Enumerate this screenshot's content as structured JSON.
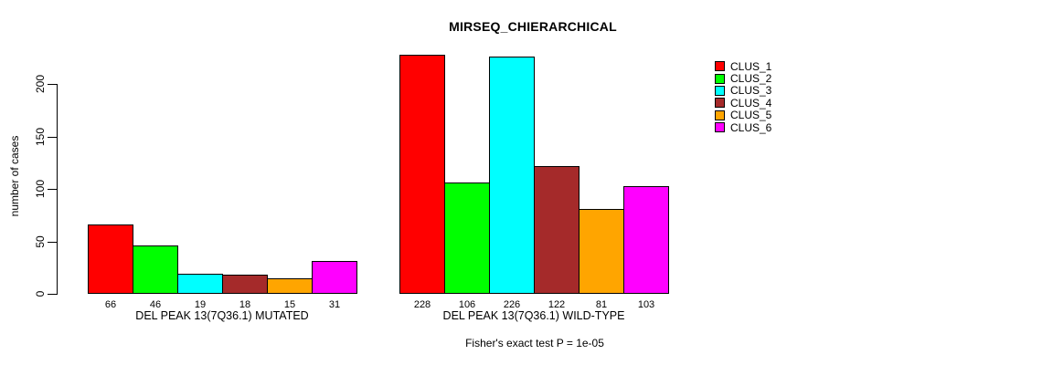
{
  "window": {
    "background": "#ffffff",
    "text_color": "#000000"
  },
  "chart_data": {
    "type": "bar",
    "title": "MIRSEQ_CHIERARCHICAL",
    "ylabel": "number of cases",
    "xlabel": "",
    "yticks": [
      0,
      50,
      100,
      150,
      200
    ],
    "ylim": [
      0,
      230
    ],
    "grid": false,
    "bar_border_color": "#000000",
    "legend": {
      "position": "right",
      "entries": [
        {
          "label": "CLUS_1",
          "color": "#ff0000"
        },
        {
          "label": "CLUS_2",
          "color": "#00ff00"
        },
        {
          "label": "CLUS_3",
          "color": "#00ffff"
        },
        {
          "label": "CLUS_4",
          "color": "#a52a2a"
        },
        {
          "label": "CLUS_5",
          "color": "#ffa500"
        },
        {
          "label": "CLUS_6",
          "color": "#ff00ff"
        }
      ]
    },
    "groups": [
      {
        "label": "DEL PEAK 13(7Q36.1) MUTATED",
        "values": [
          66,
          46,
          19,
          18,
          15,
          31
        ]
      },
      {
        "label": "DEL PEAK 13(7Q36.1) WILD-TYPE",
        "values": [
          228,
          106,
          226,
          122,
          81,
          103
        ]
      }
    ],
    "bar_value_labels_shown": true,
    "annotation": "Fisher's exact test P = 1e-05"
  }
}
